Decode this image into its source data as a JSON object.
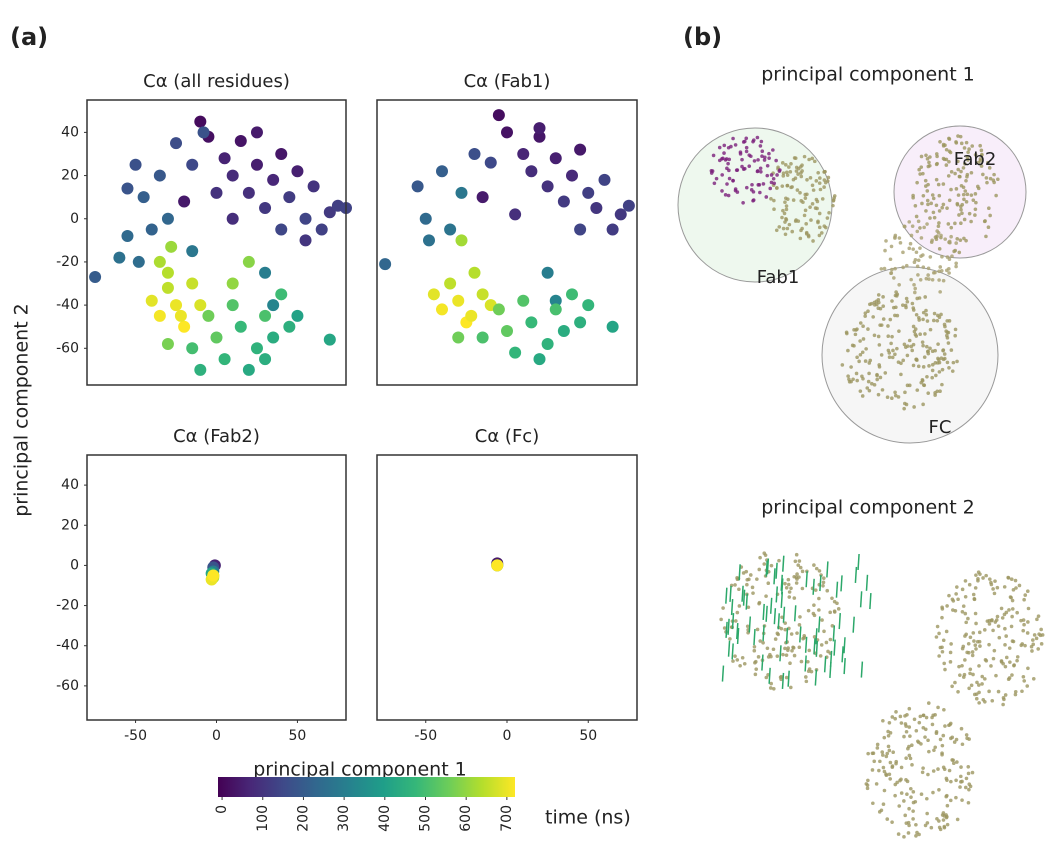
{
  "panel_a": "(a)",
  "panel_b": "(b)",
  "x_label": "principal component 1",
  "y_label": "principal component 2",
  "chart_data": [
    {
      "type": "scatter",
      "title": "Cα (all residues)",
      "x": [
        -10,
        -20,
        -5,
        5,
        10,
        15,
        20,
        25,
        30,
        35,
        40,
        45,
        50,
        55,
        60,
        65,
        70,
        75,
        80,
        25,
        10,
        -15,
        0,
        40,
        55,
        -75,
        -55,
        -60,
        -50,
        -45,
        -55,
        -35,
        -30,
        -40,
        -25,
        -15,
        30,
        35,
        -8,
        -48,
        -40,
        -35,
        -30,
        -25,
        -20,
        -30,
        -15,
        -28,
        -35,
        -10,
        -22,
        -15,
        -5,
        0,
        5,
        10,
        15,
        20,
        25,
        30,
        35,
        40,
        45,
        -30,
        70,
        10,
        20,
        50,
        -10,
        30
      ],
      "values": [
        45,
        8,
        38,
        28,
        20,
        36,
        12,
        25,
        5,
        18,
        30,
        10,
        22,
        0,
        15,
        -5,
        3,
        6,
        5,
        40,
        0,
        25,
        12,
        -5,
        -10,
        -27,
        14,
        -18,
        25,
        10,
        -8,
        20,
        0,
        -5,
        35,
        -15,
        -25,
        -40,
        40,
        -20,
        -38,
        -45,
        -32,
        -40,
        -50,
        -25,
        -30,
        -13,
        -20,
        -40,
        -45,
        -60,
        -45,
        -55,
        -65,
        -40,
        -50,
        -70,
        -60,
        -45,
        -55,
        -35,
        -50,
        -58,
        -56,
        -30,
        -20,
        -45,
        -70,
        -65
      ],
      "time": [
        10,
        40,
        20,
        60,
        80,
        30,
        90,
        50,
        110,
        70,
        35,
        120,
        55,
        140,
        100,
        130,
        115,
        125,
        135,
        45,
        85,
        150,
        95,
        145,
        105,
        200,
        180,
        260,
        170,
        210,
        240,
        190,
        230,
        220,
        160,
        280,
        300,
        320,
        175,
        250,
        690,
        710,
        650,
        700,
        720,
        640,
        660,
        610,
        630,
        680,
        700,
        500,
        560,
        540,
        470,
        520,
        480,
        430,
        460,
        510,
        440,
        490,
        450,
        570,
        420,
        600,
        590,
        410,
        455,
        445
      ],
      "xlim": [
        -80,
        80
      ],
      "ylim": [
        -77,
        55
      ],
      "yticks": [
        -60,
        -40,
        -20,
        0,
        20,
        40
      ]
    },
    {
      "type": "scatter",
      "title": "Cα (Fab1)",
      "x": [
        -5,
        -15,
        0,
        10,
        15,
        20,
        25,
        30,
        35,
        40,
        45,
        50,
        55,
        60,
        65,
        70,
        75,
        20,
        5,
        -10,
        45,
        -75,
        -55,
        -48,
        -40,
        -50,
        -35,
        -28,
        -20,
        25,
        30,
        -45,
        -40,
        -35,
        -30,
        -25,
        -20,
        -15,
        -28,
        -10,
        -22,
        -15,
        -5,
        0,
        5,
        10,
        15,
        20,
        25,
        30,
        35,
        40,
        45,
        65,
        -30,
        50
      ],
      "values": [
        48,
        10,
        40,
        30,
        22,
        38,
        15,
        28,
        8,
        20,
        32,
        12,
        5,
        18,
        -5,
        2,
        6,
        42,
        2,
        26,
        -5,
        -21,
        15,
        -10,
        22,
        0,
        -5,
        12,
        30,
        -25,
        -38,
        -35,
        -42,
        -30,
        -38,
        -48,
        -25,
        -35,
        -10,
        -40,
        -45,
        -55,
        -42,
        -52,
        -62,
        -38,
        -48,
        -65,
        -58,
        -42,
        -52,
        -35,
        -48,
        -50,
        -55,
        -40
      ],
      "time": [
        15,
        45,
        25,
        65,
        85,
        35,
        95,
        55,
        115,
        75,
        40,
        125,
        105,
        135,
        120,
        110,
        130,
        50,
        90,
        150,
        140,
        230,
        190,
        260,
        210,
        240,
        270,
        280,
        165,
        300,
        320,
        690,
        710,
        650,
        700,
        720,
        640,
        660,
        620,
        680,
        700,
        510,
        560,
        540,
        470,
        520,
        480,
        430,
        460,
        505,
        440,
        490,
        450,
        415,
        560,
        470
      ],
      "xlim": [
        -80,
        80
      ],
      "ylim": [
        -77,
        55
      ]
    },
    {
      "type": "scatter",
      "title": "Cα (Fab2)",
      "x": [
        -1,
        -2,
        -2,
        -3,
        -2,
        -2,
        -3,
        -2
      ],
      "values": [
        0,
        -1,
        -3,
        -4,
        -5,
        -6,
        -7,
        -5
      ],
      "time": [
        60,
        180,
        300,
        420,
        540,
        640,
        700,
        720
      ],
      "xlim": [
        -80,
        80
      ],
      "ylim": [
        -77,
        55
      ],
      "xticks": [
        -50,
        0,
        50
      ],
      "yticks": [
        -60,
        -40,
        -20,
        0,
        20,
        40
      ]
    },
    {
      "type": "scatter",
      "title": "Cα (Fc)",
      "x": [
        -6,
        -6,
        -6,
        -6
      ],
      "values": [
        1,
        0,
        0,
        0
      ],
      "time": [
        40,
        300,
        600,
        720
      ],
      "xlim": [
        -80,
        80
      ],
      "ylim": [
        -77,
        55
      ],
      "xticks": [
        -50,
        0,
        50
      ]
    }
  ],
  "colorbar": {
    "label": "time (ns)",
    "lim": [
      -10,
      720
    ],
    "ticks": [
      0,
      100,
      200,
      300,
      400,
      500,
      600,
      700
    ]
  },
  "diagram": {
    "title_1": "principal component 1",
    "title_2": "principal component 2",
    "labels": [
      "Fab1",
      "Fab2",
      "FC"
    ]
  }
}
